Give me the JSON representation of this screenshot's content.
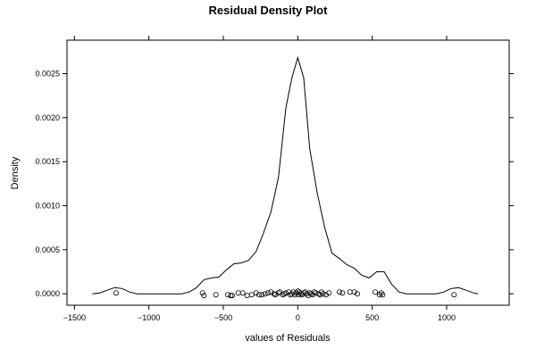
{
  "chart_data": {
    "type": "line",
    "title": "Residual Density Plot",
    "xlabel": "values of Residuals",
    "ylabel": "Density",
    "xlim": [
      -1550,
      1420
    ],
    "ylim": [
      -0.00013,
      0.00288
    ],
    "x_ticks": [
      -1500,
      -1000,
      -500,
      0,
      500,
      1000
    ],
    "x_tick_labels": [
      "−1500",
      "−1000",
      "−500",
      "0",
      "500",
      "1000"
    ],
    "y_ticks": [
      0.0,
      0.0005,
      0.001,
      0.0015,
      0.002,
      0.0025
    ],
    "y_tick_labels": [
      "0.0000",
      "0.0005",
      "0.0010",
      "0.0015",
      "0.0020",
      "0.0025"
    ],
    "grid": false,
    "series": [
      {
        "type": "line",
        "color": "#000000",
        "x": [
          -1380,
          -1330,
          -1280,
          -1230,
          -1180,
          -1130,
          -1080,
          -1030,
          -980,
          -930,
          -880,
          -830,
          -780,
          -730,
          -680,
          -630,
          -580,
          -530,
          -480,
          -430,
          -380,
          -330,
          -280,
          -230,
          -180,
          -130,
          -80,
          -40,
          0,
          40,
          80,
          130,
          180,
          230,
          280,
          330,
          380,
          430,
          480,
          530,
          580,
          630,
          680,
          730,
          780,
          830,
          880,
          930,
          980,
          1030,
          1080,
          1130,
          1180,
          1210
        ],
        "y": [
          0.0,
          1e-05,
          4e-05,
          7e-05,
          6e-05,
          2e-05,
          0.0,
          0.0,
          0.0,
          0.0,
          0.0,
          0.0,
          0.0,
          2e-05,
          7e-05,
          0.00016,
          0.00018,
          0.00019,
          0.00027,
          0.00034,
          0.00035,
          0.00038,
          0.00048,
          0.00069,
          0.00093,
          0.00132,
          0.00211,
          0.00245,
          0.00268,
          0.00245,
          0.00165,
          0.00115,
          0.00076,
          0.00046,
          0.0004,
          0.00033,
          0.00029,
          0.00021,
          0.00018,
          0.00025,
          0.00025,
          0.00011,
          2e-05,
          0.0,
          0.0,
          0.0,
          0.0,
          0.0,
          2e-05,
          6e-05,
          7e-05,
          4e-05,
          1e-05,
          0.0
        ]
      },
      {
        "type": "scatter",
        "marker": "open-circle",
        "color": "#000000",
        "x": [
          -1220,
          -640,
          -630,
          -550,
          -470,
          -450,
          -440,
          -400,
          -370,
          -340,
          -310,
          -280,
          -260,
          -240,
          -220,
          -200,
          -180,
          -160,
          -150,
          -130,
          -120,
          -100,
          -90,
          -80,
          -60,
          -50,
          -40,
          -30,
          -20,
          -10,
          0,
          5,
          10,
          20,
          30,
          40,
          50,
          60,
          70,
          80,
          90,
          100,
          110,
          120,
          140,
          150,
          160,
          170,
          190,
          210,
          280,
          300,
          350,
          380,
          400,
          520,
          550,
          560,
          570,
          1050
        ],
        "y": [
          1e-05,
          1e-05,
          -2e-05,
          -1e-05,
          -1e-05,
          -2e-05,
          -2e-05,
          1e-05,
          1e-05,
          -2e-05,
          -1e-05,
          1e-05,
          -1e-05,
          -1e-05,
          0.0,
          1e-05,
          2e-05,
          0.0,
          -1e-05,
          1e-05,
          2e-05,
          -1e-05,
          0.0,
          1e-05,
          2e-05,
          -1e-05,
          0.0,
          2e-05,
          -1e-05,
          1e-05,
          3e-05,
          -1e-05,
          2e-05,
          0.0,
          -1e-05,
          1e-05,
          2e-05,
          0.0,
          -2e-05,
          1e-05,
          0.0,
          -1e-05,
          2e-05,
          1e-05,
          0.0,
          -1e-05,
          2e-05,
          0.0,
          -1e-05,
          1e-05,
          2e-05,
          1e-05,
          2e-05,
          2e-05,
          0.0,
          2e-05,
          -1e-05,
          1e-05,
          -1e-05,
          -1e-05
        ]
      }
    ]
  }
}
